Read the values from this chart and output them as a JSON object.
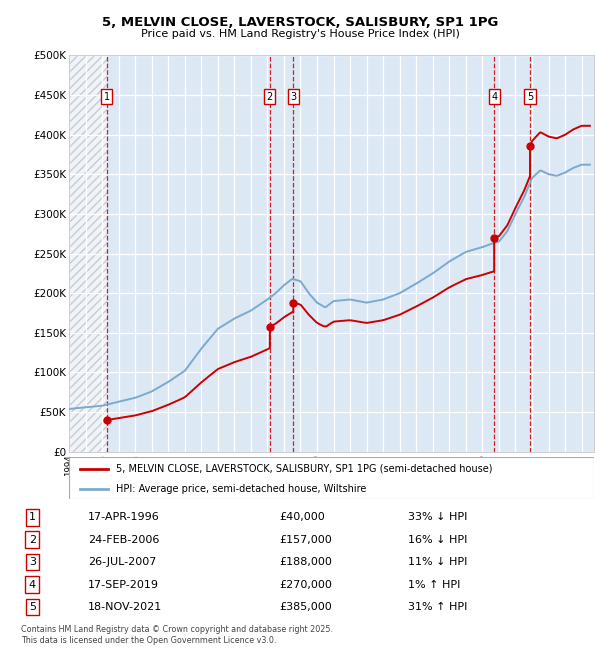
{
  "title1": "5, MELVIN CLOSE, LAVERSTOCK, SALISBURY, SP1 1PG",
  "title2": "Price paid vs. HM Land Registry's House Price Index (HPI)",
  "ylim": [
    0,
    500000
  ],
  "yticks": [
    0,
    50000,
    100000,
    150000,
    200000,
    250000,
    300000,
    350000,
    400000,
    450000,
    500000
  ],
  "ytick_labels": [
    "£0",
    "£50K",
    "£100K",
    "£150K",
    "£200K",
    "£250K",
    "£300K",
    "£350K",
    "£400K",
    "£450K",
    "£500K"
  ],
  "sale_prices": [
    40000,
    157000,
    188000,
    270000,
    385000
  ],
  "sale_labels": [
    "1",
    "2",
    "3",
    "4",
    "5"
  ],
  "sale_year_floats": [
    1996.293,
    2006.146,
    2007.564,
    2019.712,
    2021.881
  ],
  "sale_color": "#cc0000",
  "hpi_color": "#7aaacc",
  "background_chart": "#dde8f5",
  "legend_label_red": "5, MELVIN CLOSE, LAVERSTOCK, SALISBURY, SP1 1PG (semi-detached house)",
  "legend_label_blue": "HPI: Average price, semi-detached house, Wiltshire",
  "table_data": [
    [
      "1",
      "17-APR-1996",
      "£40,000",
      "33% ↓ HPI"
    ],
    [
      "2",
      "24-FEB-2006",
      "£157,000",
      "16% ↓ HPI"
    ],
    [
      "3",
      "26-JUL-2007",
      "£188,000",
      "11% ↓ HPI"
    ],
    [
      "4",
      "17-SEP-2019",
      "£270,000",
      "1% ↑ HPI"
    ],
    [
      "5",
      "18-NOV-2021",
      "£385,000",
      "31% ↑ HPI"
    ]
  ],
  "footnote": "Contains HM Land Registry data © Crown copyright and database right 2025.\nThis data is licensed under the Open Government Licence v3.0.",
  "x_start_year": 1994,
  "x_end_year": 2025,
  "hpi_keypoints": [
    [
      1994.0,
      54000
    ],
    [
      1995.0,
      56000
    ],
    [
      1996.0,
      58000
    ],
    [
      1997.0,
      63000
    ],
    [
      1998.0,
      68000
    ],
    [
      1999.0,
      76000
    ],
    [
      2000.0,
      88000
    ],
    [
      2001.0,
      102000
    ],
    [
      2002.0,
      130000
    ],
    [
      2003.0,
      155000
    ],
    [
      2004.0,
      168000
    ],
    [
      2005.0,
      178000
    ],
    [
      2006.0,
      192000
    ],
    [
      2006.5,
      200000
    ],
    [
      2007.0,
      210000
    ],
    [
      2007.5,
      218000
    ],
    [
      2008.0,
      215000
    ],
    [
      2008.5,
      200000
    ],
    [
      2009.0,
      188000
    ],
    [
      2009.5,
      182000
    ],
    [
      2010.0,
      190000
    ],
    [
      2011.0,
      192000
    ],
    [
      2012.0,
      188000
    ],
    [
      2013.0,
      192000
    ],
    [
      2014.0,
      200000
    ],
    [
      2015.0,
      212000
    ],
    [
      2016.0,
      225000
    ],
    [
      2017.0,
      240000
    ],
    [
      2018.0,
      252000
    ],
    [
      2019.0,
      258000
    ],
    [
      2019.5,
      262000
    ],
    [
      2020.0,
      265000
    ],
    [
      2020.5,
      278000
    ],
    [
      2021.0,
      300000
    ],
    [
      2021.5,
      320000
    ],
    [
      2022.0,
      345000
    ],
    [
      2022.5,
      355000
    ],
    [
      2023.0,
      350000
    ],
    [
      2023.5,
      348000
    ],
    [
      2024.0,
      352000
    ],
    [
      2024.5,
      358000
    ],
    [
      2025.0,
      362000
    ]
  ]
}
